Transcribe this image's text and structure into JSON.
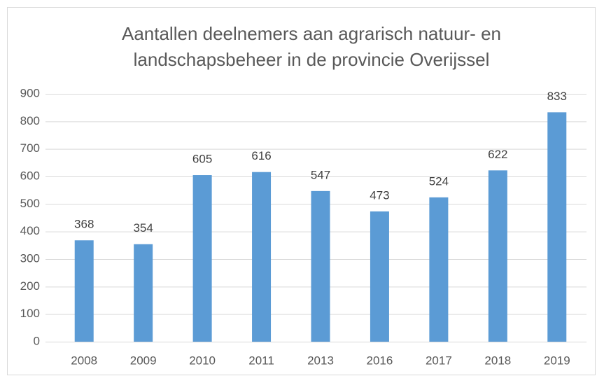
{
  "chart_data": {
    "type": "bar",
    "title": [
      "Aantallen deelnemers aan agrarisch natuur- en",
      "landschapsbeheer in de provincie Overijssel"
    ],
    "categories": [
      "2008",
      "2009",
      "2010",
      "2011",
      "2013",
      "2016",
      "2017",
      "2018",
      "2019"
    ],
    "values": [
      368,
      354,
      605,
      616,
      547,
      473,
      524,
      622,
      833
    ],
    "color": "#5b9bd5",
    "ylim": [
      0,
      900
    ],
    "yticks": [
      0,
      100,
      200,
      300,
      400,
      500,
      600,
      700,
      800,
      900
    ],
    "grid": true,
    "data_labels": true
  }
}
